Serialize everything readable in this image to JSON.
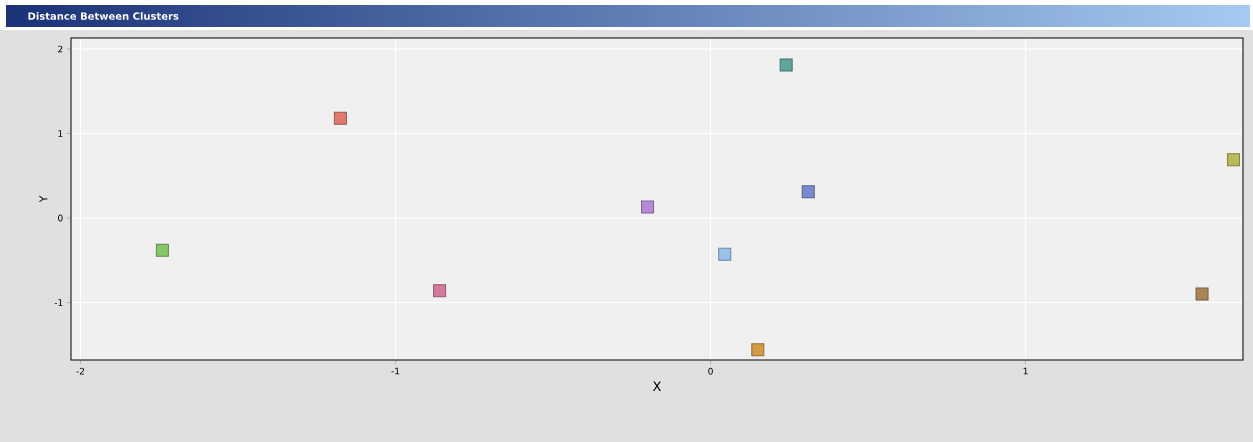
{
  "chart_data": {
    "type": "scatter",
    "title": "Distance Between Clusters",
    "xlabel": "X",
    "ylabel": "Y",
    "x": [
      0.24,
      -1.175,
      1.66,
      0.31,
      -0.2,
      -1.74,
      0.045,
      -0.86,
      1.56,
      0.15
    ],
    "values": [
      1.81,
      1.18,
      0.69,
      0.31,
      0.13,
      -0.38,
      -0.43,
      -0.86,
      -0.9,
      -1.56
    ],
    "colors": [
      "#5fa59a",
      "#e07a6e",
      "#b8bb58",
      "#7a8ad0",
      "#b68ad6",
      "#86c76c",
      "#98c2ea",
      "#d47a9e",
      "#a88458",
      "#d49a48"
    ],
    "xlim": [
      -2.03,
      1.69
    ],
    "ylim": [
      -1.68,
      2.13
    ],
    "xticks": [
      -2,
      -1,
      0,
      1
    ],
    "yticks": [
      -1,
      0,
      1,
      2
    ],
    "grid": true,
    "marker": "square"
  }
}
